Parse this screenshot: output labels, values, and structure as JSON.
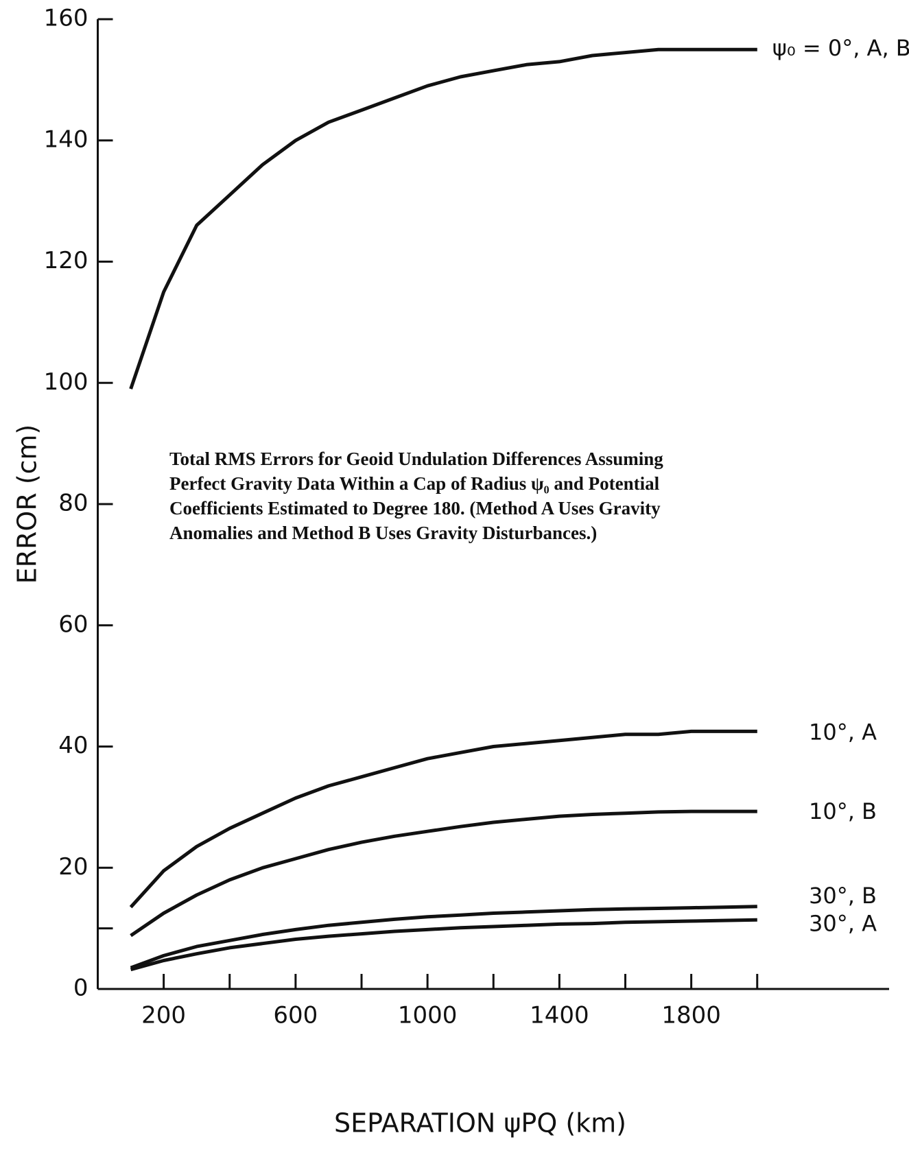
{
  "chart_data": {
    "type": "line",
    "ylabel": "ERROR (cm)",
    "xlabel": "SEPARATION ψPQ (km)",
    "annotation": [
      "Total RMS Errors for Geoid Undulation Differences Assuming",
      "Perfect Gravity Data Within a Cap of Radius ψ₀ and Potential",
      "Coefficients Estimated to Degree 180.  (Method A Uses Gravity",
      "Anomalies and Method B Uses Gravity Disturbances.)"
    ],
    "x": [
      100,
      200,
      300,
      400,
      500,
      600,
      700,
      800,
      900,
      1000,
      1100,
      1200,
      1300,
      1400,
      1500,
      1600,
      1700,
      1800,
      1900,
      2000
    ],
    "series": [
      {
        "name": "ψ₀ = 0°, A, B",
        "color": "#111111",
        "values": [
          99,
          115,
          126,
          131,
          136,
          140,
          143,
          145,
          147,
          149,
          150.5,
          151.5,
          152.5,
          153,
          154,
          154.5,
          155,
          155,
          155,
          155
        ]
      },
      {
        "name": "10°, A",
        "color": "#111111",
        "values": [
          13.5,
          19.5,
          23.5,
          26.5,
          29,
          31.5,
          33.5,
          35,
          36.5,
          38,
          39,
          40,
          40.5,
          41,
          41.5,
          42,
          42,
          42.5,
          42.5,
          42.5
        ]
      },
      {
        "name": "10°, B",
        "color": "#111111",
        "values": [
          8.8,
          12.5,
          15.5,
          18,
          20,
          21.5,
          23,
          24.2,
          25.2,
          26,
          26.8,
          27.5,
          28,
          28.5,
          28.8,
          29,
          29.2,
          29.3,
          29.3,
          29.3
        ]
      },
      {
        "name": "30°, B",
        "color": "#111111",
        "values": [
          3.5,
          5.5,
          7,
          8,
          9,
          9.8,
          10.5,
          11,
          11.5,
          11.9,
          12.2,
          12.5,
          12.7,
          12.9,
          13.1,
          13.2,
          13.3,
          13.4,
          13.5,
          13.6
        ]
      },
      {
        "name": "30°, A",
        "color": "#111111",
        "values": [
          3.2,
          4.7,
          5.8,
          6.8,
          7.5,
          8.2,
          8.7,
          9.1,
          9.5,
          9.8,
          10.1,
          10.3,
          10.5,
          10.7,
          10.8,
          11,
          11.1,
          11.2,
          11.3,
          11.4
        ]
      }
    ],
    "xlim": [
      0,
      2400
    ],
    "xticks": [
      200,
      600,
      1000,
      1400,
      1800
    ],
    "xminor_ticks": [
      400,
      800,
      1200,
      1600,
      2000
    ],
    "ylim": [
      0,
      160
    ],
    "yticks": [
      0,
      20,
      40,
      60,
      80,
      100,
      120,
      140,
      160
    ],
    "yminor_ticks": [
      10
    ],
    "grid": false
  }
}
